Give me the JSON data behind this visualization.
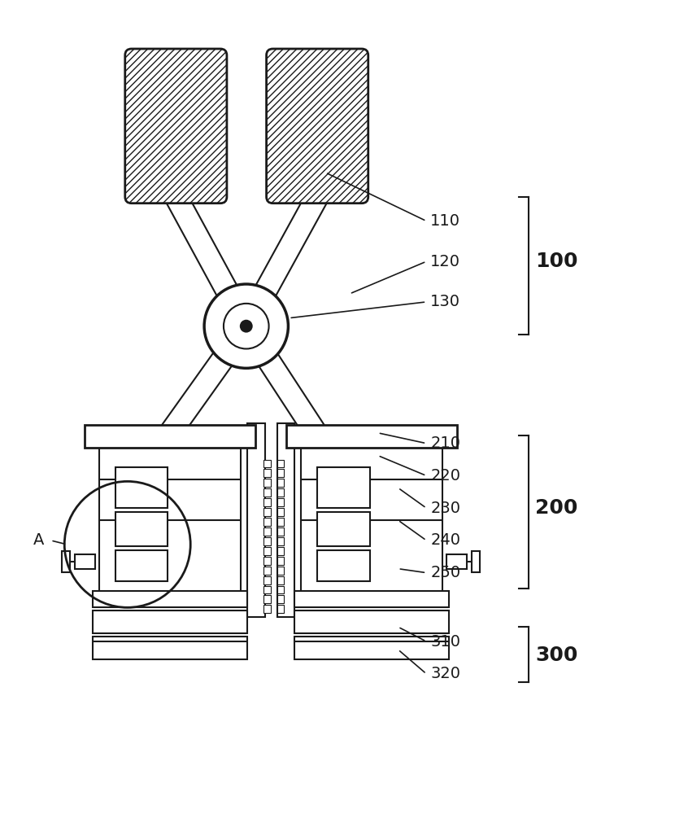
{
  "bg_color": "#ffffff",
  "line_color": "#1a1a1a",
  "linewidth": 1.5,
  "fig_width": 8.3,
  "fig_height": 10.0
}
